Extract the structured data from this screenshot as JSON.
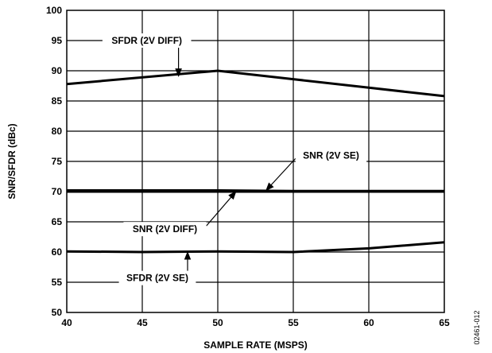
{
  "chart_data": {
    "type": "line",
    "xlabel": "SAMPLE RATE (MSPS)",
    "ylabel": "SNR/SFDR (dBc)",
    "xlim": [
      40,
      65
    ],
    "ylim": [
      50,
      100
    ],
    "x_ticks": [
      "40",
      "45",
      "50",
      "55",
      "60",
      "65"
    ],
    "y_ticks": [
      "50",
      "55",
      "60",
      "65",
      "70",
      "75",
      "80",
      "85",
      "90",
      "95",
      "100"
    ],
    "grid": true,
    "series": [
      {
        "name": "SFDR (2V DIFF)",
        "x": [
          40,
          50,
          55,
          60,
          65
        ],
        "y": [
          87.8,
          90.0,
          88.6,
          87.2,
          85.8
        ]
      },
      {
        "name": "SNR (2V SE)",
        "x": [
          40,
          45,
          50,
          55,
          60,
          65
        ],
        "y": [
          70.2,
          70.2,
          70.2,
          70.1,
          70.1,
          70.1
        ]
      },
      {
        "name": "SNR (2V DIFF)",
        "x": [
          40,
          45,
          50,
          55,
          60,
          65
        ],
        "y": [
          70.0,
          70.0,
          70.0,
          70.0,
          70.0,
          70.0
        ]
      },
      {
        "name": "SFDR (2V SE)",
        "x": [
          40,
          45,
          50,
          55,
          60,
          65
        ],
        "y": [
          60.1,
          60.0,
          60.1,
          60.0,
          60.6,
          61.6
        ]
      }
    ],
    "annotations": [
      {
        "text": "SFDR (2V DIFF)",
        "label_at": [
          45.3,
          95.0
        ],
        "arrow_to": [
          47.4,
          89.1
        ]
      },
      {
        "text": "SNR (2V SE)",
        "label_at": [
          57.5,
          76.0
        ],
        "arrow_to": [
          53.2,
          70.2
        ]
      },
      {
        "text": "SNR (2V DIFF)",
        "label_at": [
          46.5,
          63.8
        ],
        "arrow_to": [
          51.2,
          70.0
        ]
      },
      {
        "text": "SFDR (2V SE)",
        "label_at": [
          46.0,
          55.7
        ],
        "arrow_to": [
          48.0,
          60.0
        ]
      }
    ],
    "figure_id": "02461-012"
  }
}
